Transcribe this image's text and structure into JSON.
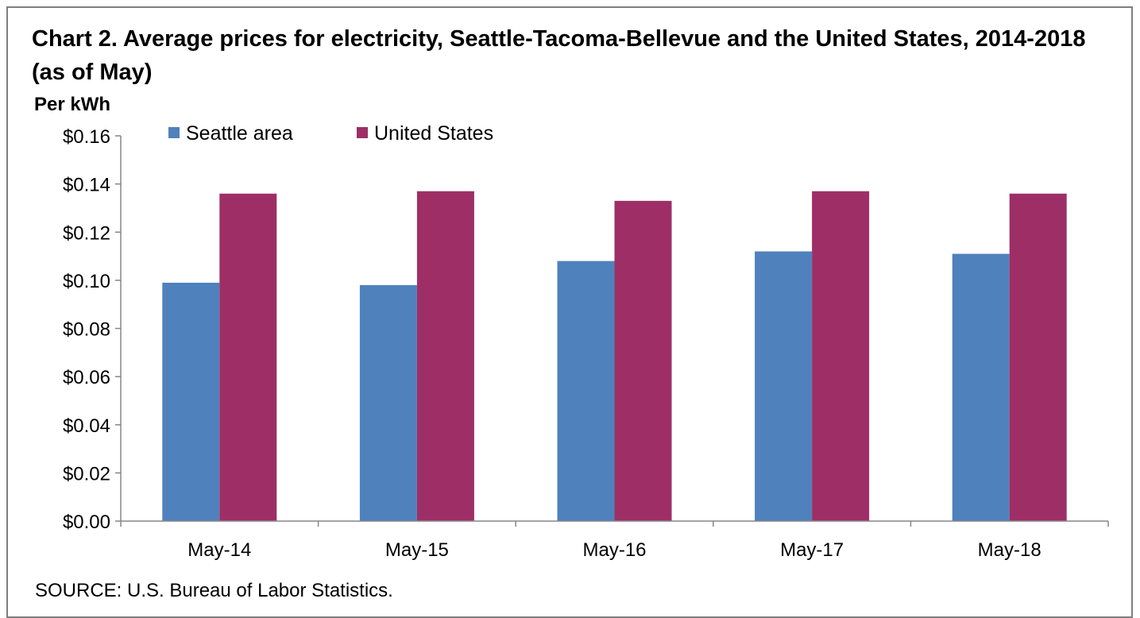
{
  "title": "Chart 2. Average prices for electricity, Seattle-Tacoma-Bellevue and the United States, 2014-2018  (as of May)",
  "y_unit": "Per kWh",
  "source": "SOURCE: U.S. Bureau of Labor Statistics.",
  "colors": {
    "seattle": "#4f81bd",
    "united_states": "#9e2f66",
    "axis": "#868686"
  },
  "chart_data": {
    "type": "bar",
    "title": "Chart 2. Average prices for electricity, Seattle-Tacoma-Bellevue and the United States, 2014-2018  (as of May)",
    "ylabel": "Per kWh",
    "xlabel": "",
    "categories": [
      "May-14",
      "May-15",
      "May-16",
      "May-17",
      "May-18"
    ],
    "series": [
      {
        "name": "Seattle area",
        "values": [
          0.099,
          0.098,
          0.108,
          0.112,
          0.111
        ]
      },
      {
        "name": "United States",
        "values": [
          0.136,
          0.137,
          0.133,
          0.137,
          0.136
        ]
      }
    ],
    "ylim": [
      0,
      0.16
    ],
    "yticks": [
      "$0.00",
      "$0.02",
      "$0.04",
      "$0.06",
      "$0.08",
      "$0.10",
      "$0.12",
      "$0.14",
      "$0.16"
    ],
    "grid": false,
    "legend_position": "top-left"
  }
}
